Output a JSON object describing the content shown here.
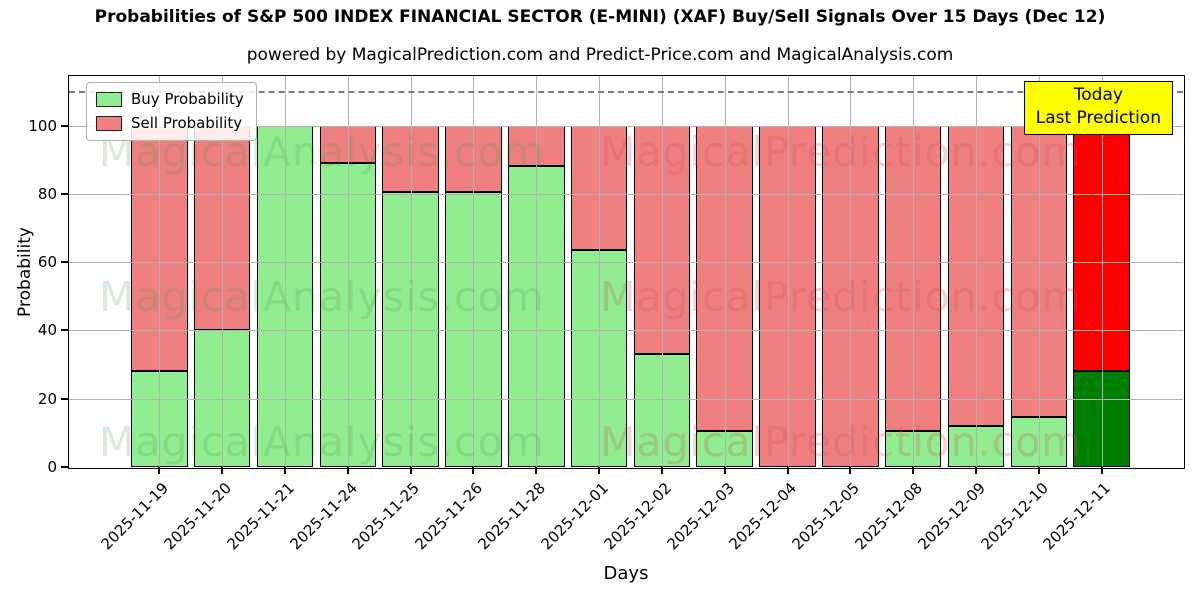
{
  "chart_data": {
    "type": "bar",
    "stacked": true,
    "title": "Probabilities of S&P 500 INDEX FINANCIAL SECTOR (E-MINI) (XAF) Buy/Sell Signals Over 15 Days (Dec 12)",
    "subtitle": "powered by MagicalPrediction.com and Predict-Price.com and MagicalAnalysis.com",
    "xlabel": "Days",
    "ylabel": "Probability",
    "ylim": [
      0,
      114.5
    ],
    "yticks": [
      0,
      20,
      40,
      60,
      80,
      100
    ],
    "grid": true,
    "legend_position": "upper-left",
    "categories": [
      "2025-11-19",
      "2025-11-20",
      "2025-11-21",
      "2025-11-24",
      "2025-11-25",
      "2025-11-26",
      "2025-11-28",
      "2025-12-01",
      "2025-12-02",
      "2025-12-03",
      "2025-12-04",
      "2025-12-05",
      "2025-12-08",
      "2025-12-09",
      "2025-12-10",
      "2025-12-11"
    ],
    "series": [
      {
        "name": "Buy Probability",
        "color": "#90EE90",
        "values": [
          28,
          40,
          100,
          89,
          80.5,
          80.5,
          88,
          63.5,
          33,
          10.5,
          0,
          0,
          10.5,
          12,
          14.5,
          28
        ]
      },
      {
        "name": "Sell Probability",
        "color": "#F08080",
        "values": [
          72,
          60,
          0,
          11,
          19.5,
          19.5,
          12,
          36.5,
          67,
          89.5,
          100,
          100,
          89.5,
          88,
          85.5,
          72
        ]
      }
    ],
    "highlight_last_bar": {
      "index": 15,
      "buy_color": "#008000",
      "sell_color": "#FF0000"
    },
    "dashed_line_y": 110,
    "annotation": {
      "line1": "Today",
      "line2": "Last Prediction",
      "bg_color": "#FFFF00"
    },
    "watermarks": {
      "left_text": "MagicalAnalysis.com",
      "right_text": "MagicalPrediction.com"
    }
  }
}
